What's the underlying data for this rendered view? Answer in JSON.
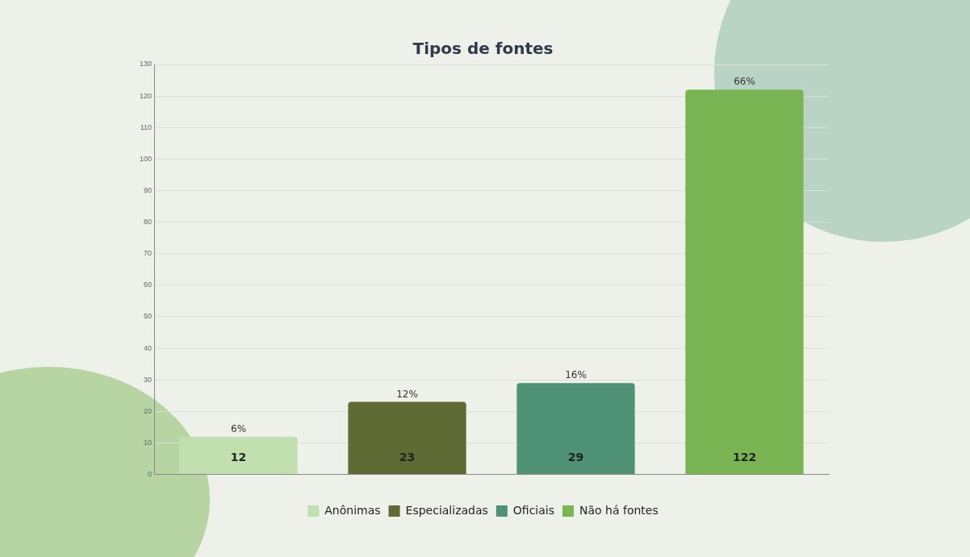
{
  "chart_data": {
    "type": "bar",
    "title": "Tipos de fontes",
    "categories": [
      null,
      null,
      null,
      null
    ],
    "series": [
      {
        "name": "Anônimas",
        "color": "#c2dfb0",
        "values": [
          12,
          null,
          null,
          null
        ]
      },
      {
        "name": "Especializadas",
        "color": "#5e6b34",
        "values": [
          null,
          23,
          null,
          null
        ]
      },
      {
        "name": "Oficiais",
        "color": "#4f9277",
        "values": [
          null,
          null,
          29,
          null
        ]
      },
      {
        "name": "Não há fontes",
        "color": "#7ab554",
        "values": [
          null,
          null,
          null,
          122
        ]
      }
    ],
    "annotations": [
      {
        "text": "6%",
        "y": 12
      },
      {
        "text": "12%",
        "y": 23
      },
      {
        "text": "16%",
        "y": 29
      },
      {
        "text": "66%",
        "y": 122
      }
    ],
    "ylim": [
      0,
      130
    ],
    "yticks": [
      0,
      10,
      20,
      30,
      40,
      50,
      60,
      70,
      80,
      90,
      100,
      110,
      120,
      130
    ],
    "grid": "y",
    "legend": "bottom",
    "data_labels": true
  }
}
